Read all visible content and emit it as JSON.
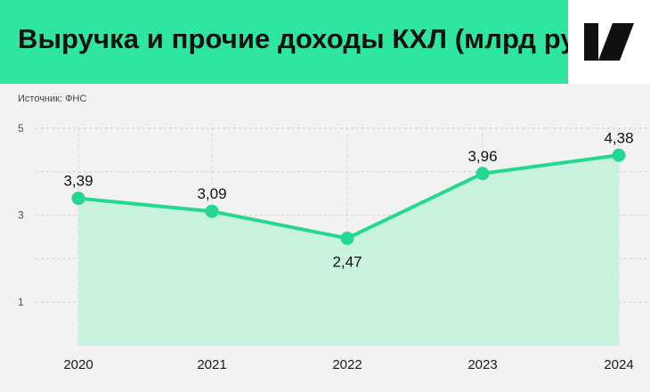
{
  "header": {
    "title": "Выручка и прочие доходы КХЛ (млрд руб)",
    "logo_icon": "brand-logo-icon",
    "colors": {
      "banner": "#2fe6a0",
      "accent": "#24d98f",
      "area": "#c8f2de"
    }
  },
  "source": "Источник: ФНС",
  "chart_data": {
    "type": "area",
    "title": "Выручка и прочие доходы КХЛ (млрд руб)",
    "x": [
      "2020",
      "2021",
      "2022",
      "2023",
      "2024"
    ],
    "values": [
      3.39,
      3.09,
      2.47,
      3.96,
      4.38
    ],
    "data_labels": [
      "3,39",
      "3,09",
      "2,47",
      "3,96",
      "4,38"
    ],
    "y_ticks": [
      "5",
      "3",
      "1"
    ],
    "y_tick_values": [
      5,
      3,
      1
    ],
    "ylim": [
      0,
      5
    ],
    "grid": "dashed-horizontal-and-vertical",
    "legend": "none"
  }
}
